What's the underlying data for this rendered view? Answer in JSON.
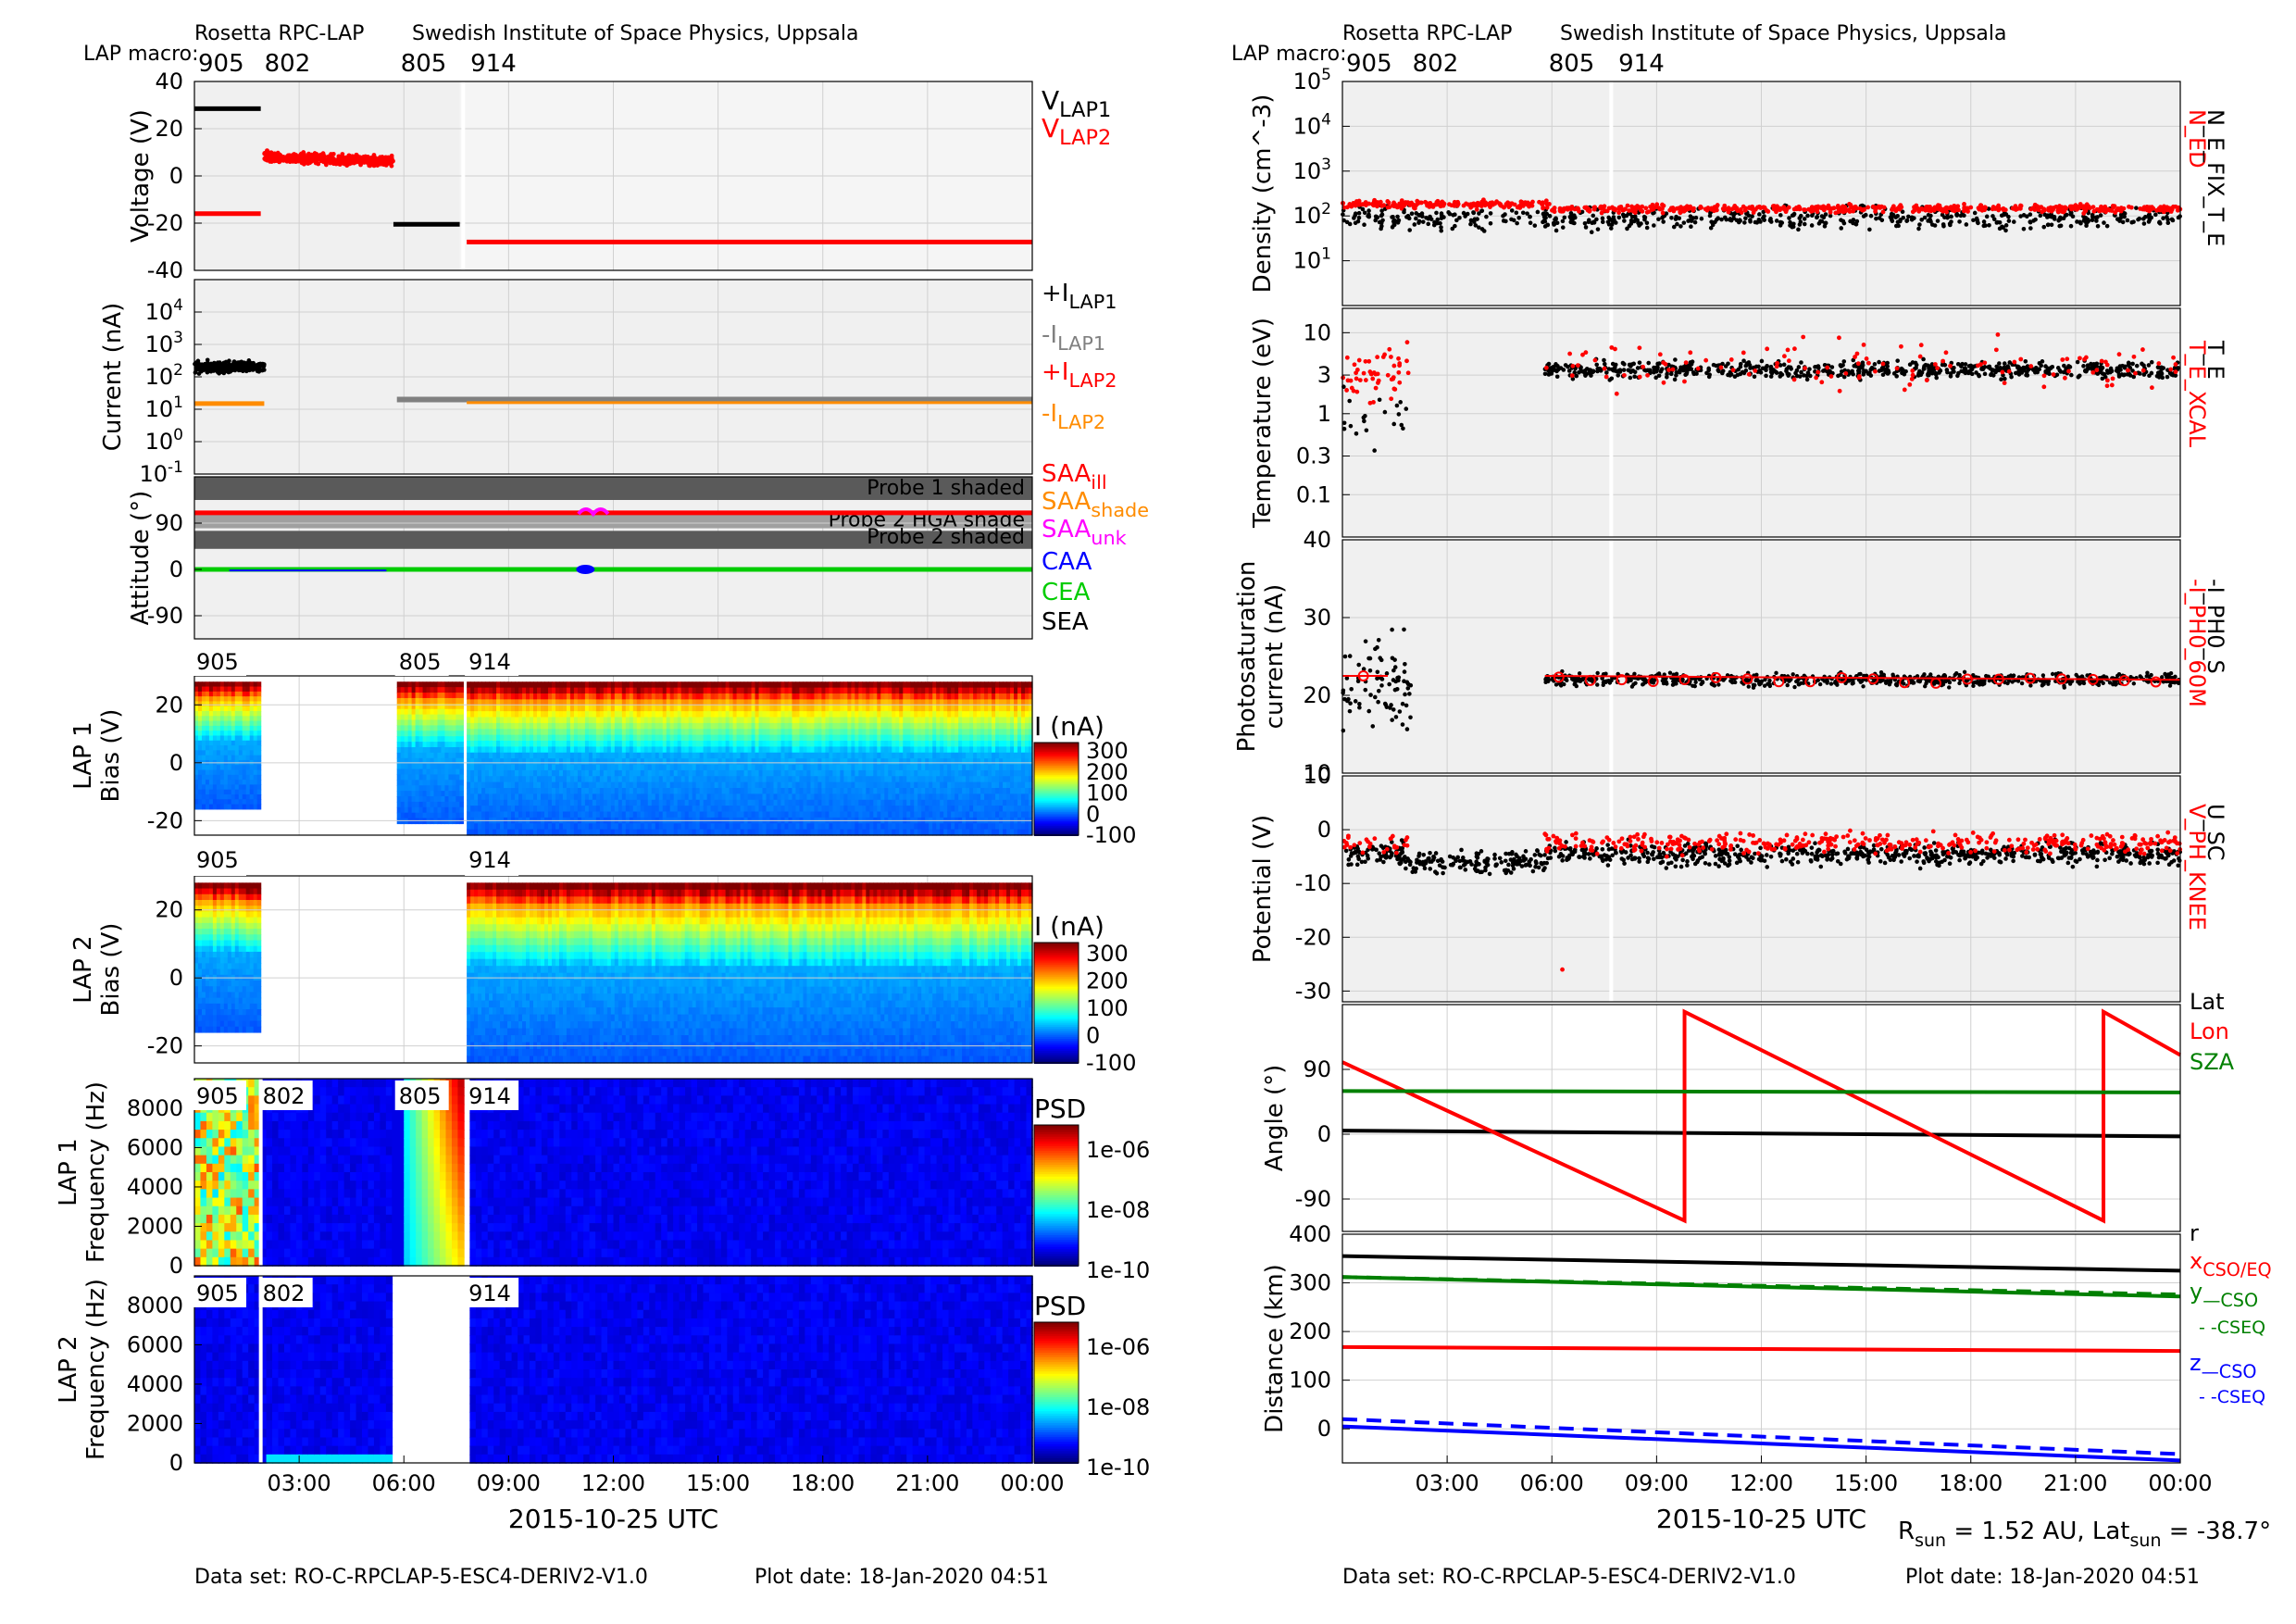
{
  "left_header": {
    "title": "Rosetta RPC-LAP",
    "institute": "Swedish Institute of Space Physics, Uppsala",
    "macro_label": "LAP macro:",
    "macros": [
      "905",
      "802",
      "805",
      "914"
    ]
  },
  "right_header": {
    "title": "Rosetta RPC-LAP",
    "institute": "Swedish Institute of Space Physics, Uppsala",
    "macro_label": "LAP macro:",
    "macros": [
      "905",
      "802",
      "805",
      "914"
    ]
  },
  "left_footer": {
    "dataset": "Data set: RO-C-RPCLAP-5-ESC4-DERIV2-V1.0",
    "plotdate": "Plot date: 18-Jan-2020 04:51"
  },
  "right_footer": {
    "dataset": "Data set: RO-C-RPCLAP-5-ESC4-DERIV2-V1.0",
    "plotdate": "Plot date: 18-Jan-2020 04:51"
  },
  "rsun_text": "R_sun = 1.52 AU, Lat_sun = -38.7°",
  "time_axis": {
    "xlabel": "2015-10-25 UTC",
    "ticks": [
      "03:00",
      "06:00",
      "09:00",
      "12:00",
      "15:00",
      "18:00",
      "21:00",
      "00:00"
    ]
  },
  "colors": {
    "black": "#000000",
    "red": "#ff0000",
    "gray": "#808080",
    "orange": "#ff8c00",
    "magenta": "#ff00ff",
    "blue": "#0000ff",
    "green": "#00cc00",
    "darkgreen": "#008000",
    "panel_bg": "#f0f0f0",
    "shade_dark": "#5a5a5a",
    "shade_light": "#a0a0a0"
  },
  "spec_labels": {
    "lap1_bias": [
      "905",
      "805",
      "914"
    ],
    "lap2_bias": [
      "905",
      "914"
    ],
    "lap1_freq": [
      "905",
      "802",
      "805",
      "914"
    ],
    "lap2_freq": [
      "905",
      "802",
      "914"
    ]
  },
  "colorbars": {
    "current": {
      "title": "I (nA)",
      "ticks": [
        "300",
        "200",
        "100",
        "0",
        "-100"
      ]
    },
    "psd": {
      "title": "PSD",
      "ticks": [
        "1e-06",
        "1e-08",
        "1e-10"
      ]
    }
  },
  "chart_data": [
    {
      "type": "line",
      "title": "Voltage",
      "ylabel": "Voltage (V)",
      "ylim": [
        -40,
        40
      ],
      "yticks": [
        "40",
        "20",
        "0",
        "-20",
        "-40"
      ],
      "x_unit": "hours since 2015-10-25 00:00",
      "series": [
        {
          "name": "V_LAP1",
          "color": "black",
          "segments": [
            [
              [
                0,
                28.5
              ],
              [
                1.9,
                28.5
              ]
            ],
            [
              [
                5.7,
                -20.5
              ],
              [
                7.6,
                -20.5
              ]
            ]
          ]
        },
        {
          "name": "V_LAP2",
          "color": "red",
          "segments": [
            [
              [
                0,
                -16
              ],
              [
                1.9,
                -16
              ]
            ],
            [
              [
                2.0,
                7
              ],
              [
                5.7,
                5
              ]
            ],
            [
              [
                7.8,
                -28
              ],
              [
                24,
                -28
              ]
            ]
          ]
        }
      ],
      "legend": [
        "V_LAP1",
        "V_LAP2"
      ]
    },
    {
      "type": "scatter",
      "title": "Current",
      "ylabel": "Current (nA)",
      "yscale": "log",
      "ylim": [
        0.1,
        100000
      ],
      "yticks": [
        "10^4",
        "10^3",
        "10^2",
        "10^1",
        "10^0",
        "10^-1"
      ],
      "series": [
        {
          "name": "+I_LAP1",
          "color": "black",
          "level": 200,
          "x": [
            0,
            2.0
          ]
        },
        {
          "name": "-I_LAP1",
          "color": "gray",
          "level": 20,
          "x": [
            5.7,
            24
          ]
        },
        {
          "name": "+I_LAP2",
          "color": "red",
          "level": null,
          "x": []
        },
        {
          "name": "-I_LAP2",
          "color": "orange",
          "level": 15,
          "x": [
            0,
            2.0
          ]
        }
      ],
      "legend": [
        "+I_LAP1",
        "-I_LAP1",
        "+I_LAP2",
        "-I_LAP2"
      ]
    },
    {
      "type": "line",
      "title": "Attitude",
      "ylabel": "Attitude (°)",
      "ylim": [
        -135,
        180
      ],
      "yticks": [
        "90",
        "0",
        "-90"
      ],
      "shading": [
        {
          "label": "Probe 1 shaded",
          "range": [
            135,
            180
          ]
        },
        {
          "label": "Probe 2 HGA shade",
          "range": [
            80,
            110
          ]
        },
        {
          "label": "Probe 2 shaded",
          "range": [
            40,
            75
          ]
        }
      ],
      "series": [
        {
          "name": "SAA_ill",
          "color": "red",
          "y": 110
        },
        {
          "name": "SAA_shade",
          "color": "orange",
          "y": null
        },
        {
          "name": "SAA_unk",
          "color": "magenta",
          "y": 112,
          "x": [
            11.0,
            11.5
          ]
        },
        {
          "name": "CAA",
          "color": "blue",
          "y": -2,
          "x": [
            1.0,
            5.5
          ]
        },
        {
          "name": "CEA",
          "color": "green",
          "y": 0
        },
        {
          "name": "SEA",
          "color": "black",
          "y": null
        }
      ],
      "legend": [
        "SAA_ill",
        "SAA_shade",
        "SAA_unk",
        "CAA",
        "CEA",
        "SEA"
      ]
    },
    {
      "type": "heatmap",
      "title": "LAP 1 Bias",
      "ylabel": "LAP 1\nBias (V)",
      "ylim": [
        -25,
        30
      ],
      "yticks": [
        "20",
        "0",
        "-20"
      ],
      "colorbar": "I (nA)"
    },
    {
      "type": "heatmap",
      "title": "LAP 2 Bias",
      "ylabel": "LAP 2\nBias (V)",
      "ylim": [
        -25,
        30
      ],
      "yticks": [
        "20",
        "0",
        "-20"
      ],
      "colorbar": "I (nA)"
    },
    {
      "type": "heatmap",
      "title": "LAP 1 Frequency",
      "ylabel": "LAP 1\nFrequency (Hz)",
      "ylim": [
        0,
        9500
      ],
      "yticks": [
        "8000",
        "6000",
        "4000",
        "2000",
        "0"
      ],
      "colorbar": "PSD"
    },
    {
      "type": "heatmap",
      "title": "LAP 2 Frequency",
      "ylabel": "LAP 2\nFrequency (Hz)",
      "ylim": [
        0,
        9500
      ],
      "yticks": [
        "8000",
        "6000",
        "4000",
        "2000",
        "0"
      ],
      "colorbar": "PSD"
    },
    {
      "type": "scatter",
      "title": "Density",
      "ylabel": "Density (cm^-3)",
      "yscale": "log",
      "ylim": [
        1,
        100000
      ],
      "yticks": [
        "10^5",
        "10^4",
        "10^3",
        "10^2",
        "10^1"
      ],
      "series": [
        {
          "name": "N_ED",
          "color": "red",
          "typical": 150
        },
        {
          "name": "N_E_FIX_T_E",
          "color": "black",
          "typical": 90
        }
      ],
      "legend": [
        "N_ED",
        "N_E_FIX_T_E"
      ]
    },
    {
      "type": "scatter",
      "title": "Temperature",
      "ylabel": "Temperature (eV)",
      "yscale": "log",
      "ylim": [
        0.03,
        20
      ],
      "yticks": [
        "10",
        "3",
        "1",
        "0.3",
        "0.1"
      ],
      "series": [
        {
          "name": "T_E_XCAL",
          "color": "red",
          "typical": 4
        },
        {
          "name": "T_E",
          "color": "black",
          "typical": 3.5
        }
      ],
      "legend": [
        "T_E_XCAL",
        "T_E"
      ]
    },
    {
      "type": "scatter",
      "title": "Photosaturation current",
      "ylabel": "Photosaturation\ncurrent (nA)",
      "ylim": [
        10,
        40
      ],
      "yticks": [
        "40",
        "30",
        "20",
        "10"
      ],
      "series": [
        {
          "name": "-I_PH0_60M",
          "color": "red",
          "typical": 22
        },
        {
          "name": "-I_PH0_S",
          "color": "black",
          "typical": 22
        }
      ],
      "legend": [
        "-I_PH0_60M",
        "-I_PH0_S"
      ]
    },
    {
      "type": "scatter",
      "title": "Potential",
      "ylabel": "Potential (V)",
      "ylim": [
        -32,
        10
      ],
      "yticks": [
        "10",
        "0",
        "-10",
        "-20",
        "-30"
      ],
      "series": [
        {
          "name": "V_PH_KNEE",
          "color": "red",
          "typical": -3
        },
        {
          "name": "U_SC",
          "color": "black",
          "typical": -5
        }
      ],
      "legend": [
        "V_PH_KNEE",
        "U_SC"
      ]
    },
    {
      "type": "line",
      "title": "Angle",
      "ylabel": "Angle (°)",
      "ylim": [
        -135,
        180
      ],
      "yticks": [
        "90",
        "0",
        "-90"
      ],
      "series": [
        {
          "name": "Lat",
          "color": "black",
          "points": [
            [
              0,
              5
            ],
            [
              24,
              -3
            ]
          ]
        },
        {
          "name": "Lon",
          "color": "red",
          "points": [
            [
              0,
              100
            ],
            [
              9.8,
              -120
            ],
            [
              9.8,
              170
            ],
            [
              21.8,
              -120
            ],
            [
              21.8,
              170
            ],
            [
              24,
              110
            ]
          ]
        },
        {
          "name": "SZA",
          "color": "darkgreen",
          "points": [
            [
              0,
              60
            ],
            [
              24,
              58
            ]
          ]
        }
      ],
      "legend": [
        "Lat",
        "Lon",
        "SZA"
      ]
    },
    {
      "type": "line",
      "title": "Distance",
      "ylabel": "Distance (km)",
      "ylim": [
        -70,
        400
      ],
      "yticks": [
        "400",
        "300",
        "200",
        "100",
        "0"
      ],
      "series": [
        {
          "name": "r",
          "color": "black",
          "points": [
            [
              0,
              355
            ],
            [
              24,
              325
            ]
          ]
        },
        {
          "name": "x_CSO/EQ",
          "color": "red",
          "points": [
            [
              0,
              168
            ],
            [
              24,
              160
            ]
          ]
        },
        {
          "name": "y_CSO",
          "color": "darkgreen",
          "points": [
            [
              0,
              312
            ],
            [
              24,
              272
            ]
          ]
        },
        {
          "name": "y_CSEQ",
          "color": "darkgreen",
          "dashed": true,
          "points": [
            [
              0,
              312
            ],
            [
              24,
              276
            ]
          ]
        },
        {
          "name": "z_CSO",
          "color": "blue",
          "points": [
            [
              0,
              5
            ],
            [
              24,
              -65
            ]
          ]
        },
        {
          "name": "z_CSEQ",
          "color": "blue",
          "dashed": true,
          "points": [
            [
              0,
              20
            ],
            [
              24,
              -52
            ]
          ]
        }
      ],
      "legend": [
        "r",
        "x_CSO/EQ",
        "y_CSO",
        "-CSEQ",
        "z_CSO",
        "-CSEQ"
      ]
    }
  ]
}
